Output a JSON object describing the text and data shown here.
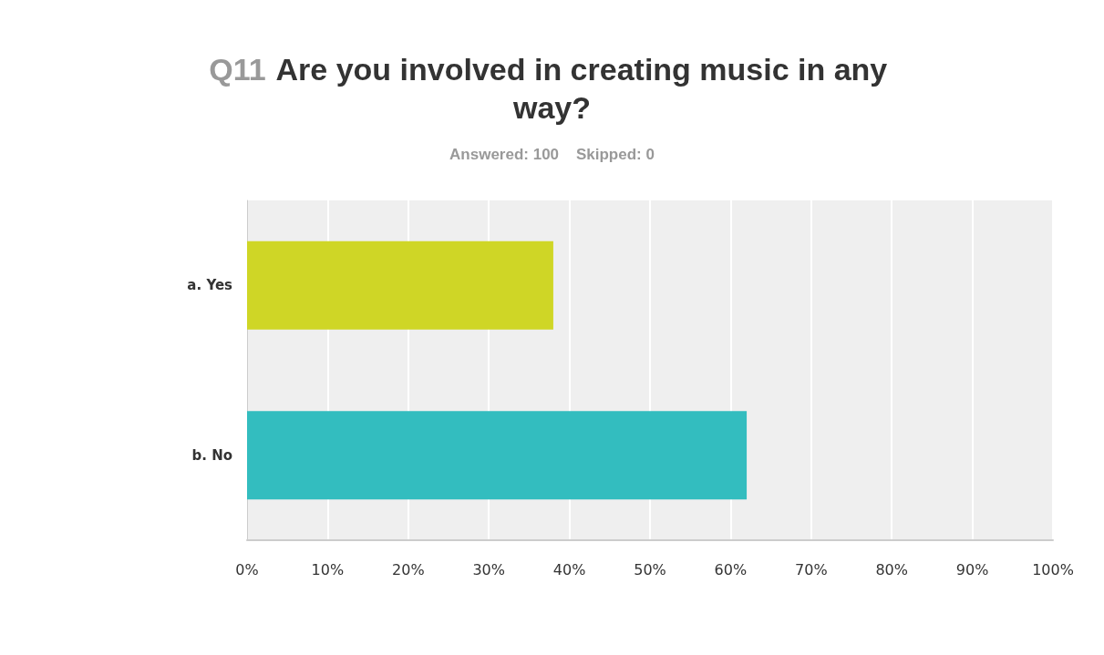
{
  "chart_data": {
    "type": "bar",
    "orientation": "horizontal",
    "title": "Q11 Are you involved in creating music in any way?",
    "subtitle": "Answered: 100    Skipped: 0",
    "categories": [
      "a. Yes",
      "b. No"
    ],
    "values": [
      38,
      62
    ],
    "colors": [
      "#cfd626",
      "#33bdbf"
    ],
    "xlim": [
      0,
      100
    ],
    "xticks": [
      {
        "value": 0,
        "label": "0%"
      },
      {
        "value": 10,
        "label": "10%"
      },
      {
        "value": 20,
        "label": "20%"
      },
      {
        "value": 30,
        "label": "30%"
      },
      {
        "value": 40,
        "label": "40%"
      },
      {
        "value": 50,
        "label": "50%"
      },
      {
        "value": 60,
        "label": "60%"
      },
      {
        "value": 70,
        "label": "70%"
      },
      {
        "value": 80,
        "label": "80%"
      },
      {
        "value": 90,
        "label": "90%"
      },
      {
        "value": 100,
        "label": "100%"
      }
    ],
    "grid": "x"
  }
}
